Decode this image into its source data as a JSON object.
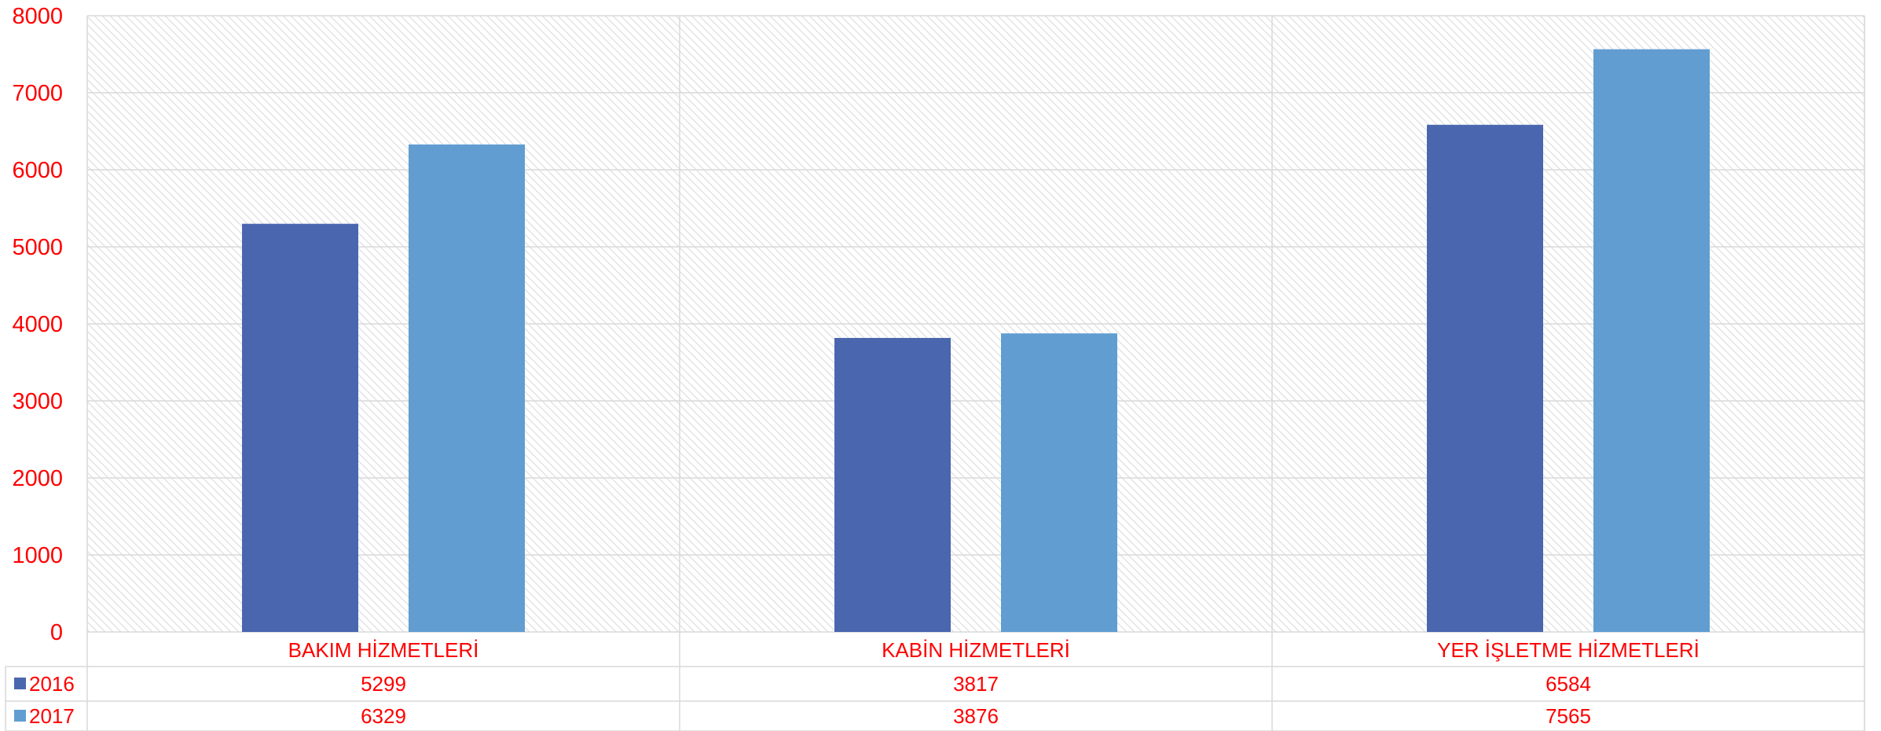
{
  "chart_data": {
    "type": "bar",
    "categories": [
      "BAKIM HİZMETLERİ",
      "KABİN HİZMETLERİ",
      "YER İŞLETME HİZMETLERİ"
    ],
    "series": [
      {
        "name": "2016",
        "values": [
          5299,
          3817,
          6584
        ]
      },
      {
        "name": "2017",
        "values": [
          6329,
          3876,
          7565
        ]
      }
    ],
    "ylim": [
      0,
      8000
    ],
    "yticks": [
      0,
      1000,
      2000,
      3000,
      4000,
      5000,
      6000,
      7000,
      8000
    ],
    "grid": true,
    "legend": "data-table",
    "data_table": true
  },
  "colors": {
    "series": [
      "#4a66ae",
      "#619dd1"
    ],
    "text": "#ff0000",
    "grid": "#d9d9d9",
    "hatch": "#e2e2e2"
  }
}
